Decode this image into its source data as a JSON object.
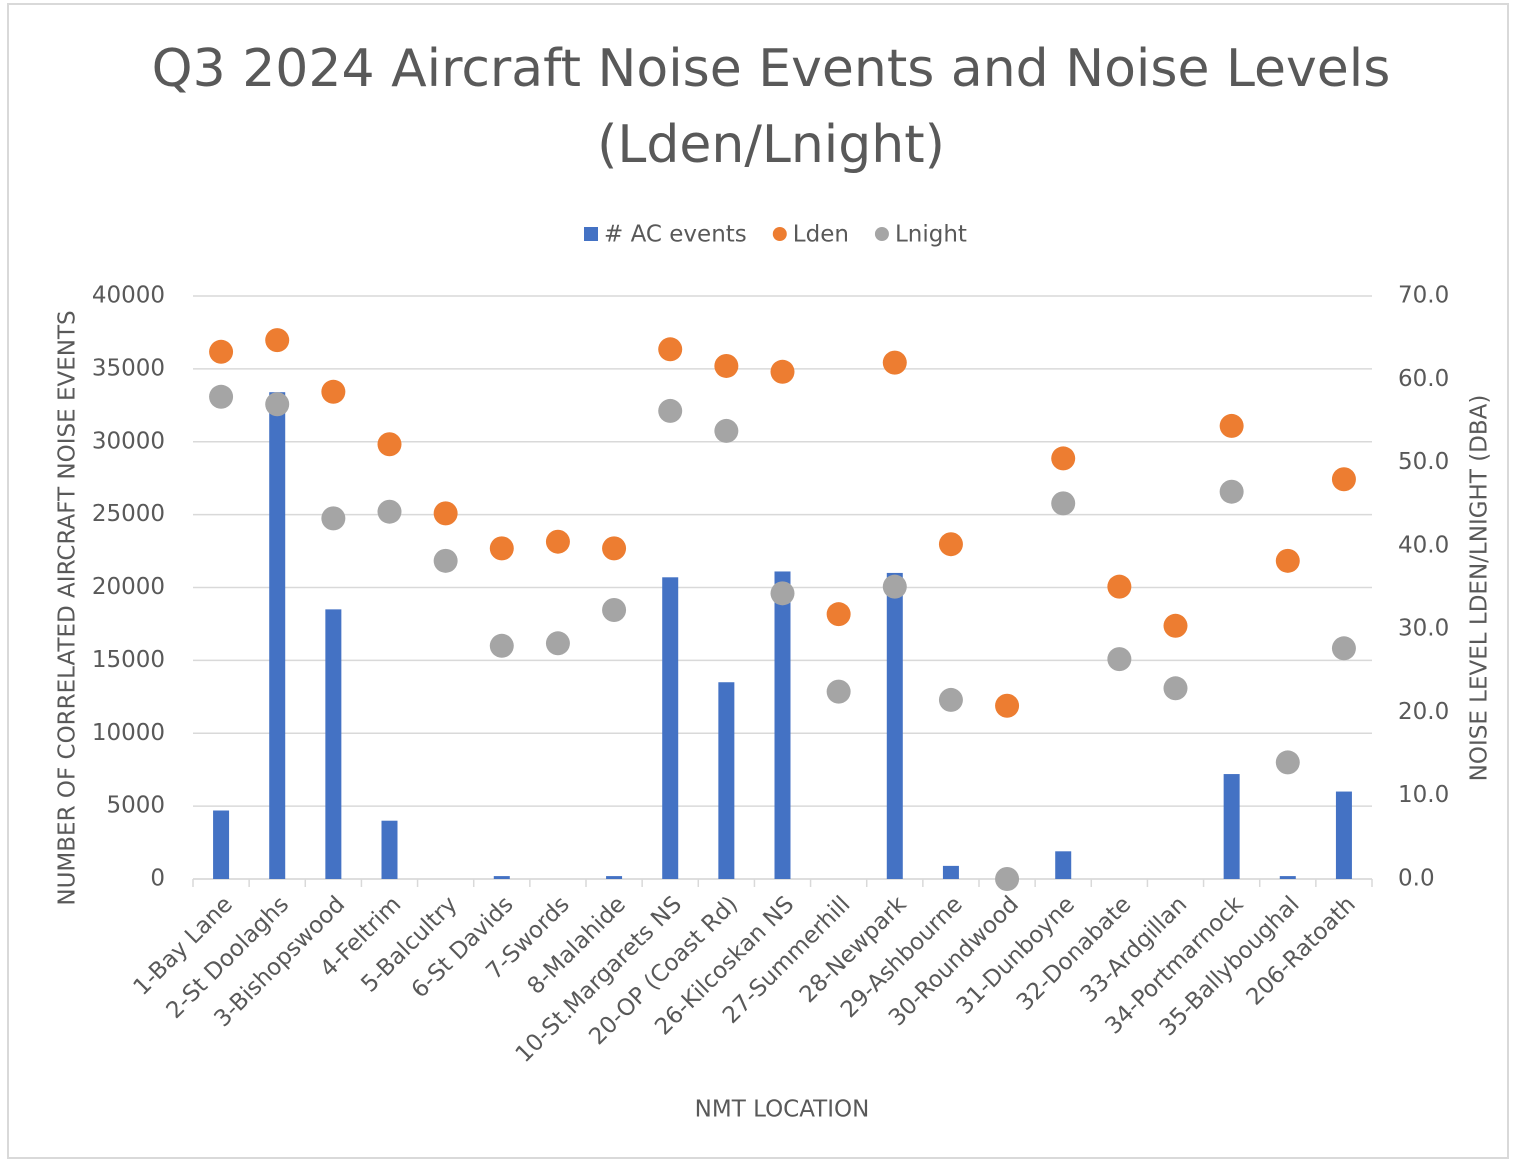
{
  "chart_data": {
    "type": "combo",
    "title": [
      "Q3 2024 Aircraft Noise Events and Noise Levels",
      "(Lden/Lnight)"
    ],
    "x_label": "NMT LOCATION",
    "y_label": "NUMBER OF CORRELATED AIRCRAFT NOISE EVENTS",
    "y2_label": "NOISE LEVEL LDEN/LNIGHT (DBA)",
    "categories": [
      "1-Bay Lane",
      "2-St  Doolaghs",
      "3-Bishopswood",
      "4-Feltrim",
      "5-Balcultry",
      "6-St Davids",
      "7-Swords",
      "8-Malahide",
      "10-St.Margarets NS",
      "20-OP (Coast Rd)",
      "26-Kilcoskan NS",
      "27-Summerhill",
      "28-Newpark",
      "29-Ashbourne",
      "30-Roundwood",
      "31-Dunboyne",
      "32-Donabate",
      "33-Ardgillan",
      "34-Portmarnock",
      "35-Ballyboughal",
      "206-Ratoath"
    ],
    "series": [
      {
        "name": "# AC events",
        "type": "bar",
        "color": "#4472c4",
        "values": [
          4700,
          33400,
          18500,
          4000,
          0,
          200,
          0,
          200,
          20700,
          13500,
          21100,
          0,
          21000,
          900,
          0,
          1900,
          0,
          0,
          7200,
          200,
          6000
        ]
      },
      {
        "name": "Lden",
        "type": "scatter",
        "axis": "y2",
        "color": "#ed7d31",
        "values": [
          63.3,
          64.7,
          58.5,
          52.2,
          43.9,
          39.7,
          40.5,
          39.7,
          63.6,
          61.6,
          60.9,
          31.8,
          62.0,
          40.2,
          20.8,
          50.5,
          35.1,
          30.4,
          54.4,
          38.2,
          48.0
        ]
      },
      {
        "name": "Lnight",
        "type": "scatter",
        "axis": "y2",
        "color": "#a5a5a5",
        "values": [
          57.9,
          57.0,
          43.3,
          44.1,
          38.2,
          28.0,
          28.3,
          32.3,
          56.2,
          53.8,
          34.3,
          22.5,
          35.1,
          21.5,
          0,
          45.1,
          26.4,
          22.9,
          46.5,
          14.0,
          27.7
        ]
      }
    ],
    "ylim": [
      0,
      40000
    ],
    "yticks": [
      0,
      5000,
      10000,
      15000,
      20000,
      25000,
      30000,
      35000,
      40000
    ],
    "y2lim": [
      0,
      70
    ],
    "y2ticks": [
      {
        "value": 0,
        "label": "0.0"
      },
      {
        "value": 10,
        "label": "10.0"
      },
      {
        "value": 20,
        "label": "20.0"
      },
      {
        "value": 30,
        "label": "30.0"
      },
      {
        "value": 40,
        "label": "40.0"
      },
      {
        "value": 50,
        "label": "50.0"
      },
      {
        "value": 60,
        "label": "60.0"
      },
      {
        "value": 70,
        "label": "70.0"
      }
    ],
    "grid": true,
    "legend": "top"
  }
}
